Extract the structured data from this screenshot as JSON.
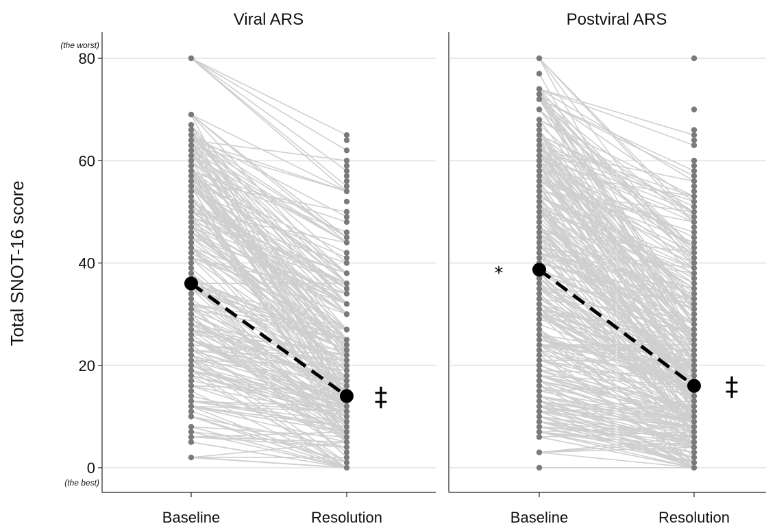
{
  "chart_data": {
    "type": "line",
    "ylabel": "Total SNOT-16 score",
    "ylim": [
      0,
      80
    ],
    "yticks": [
      0,
      20,
      40,
      60,
      80
    ],
    "y_annotations": {
      "top": "(the worst)",
      "bottom": "(the best)"
    },
    "categories": [
      "Baseline",
      "Resolution"
    ],
    "grid": "horizontal",
    "colors": {
      "individual_line": "#cfcfcf",
      "individual_point": "#7a7a7a",
      "mean": "#000000",
      "grid": "#e3e8ee"
    },
    "panels": [
      {
        "title": "Viral ARS",
        "mean": {
          "baseline": 36,
          "resolution": 14
        },
        "markers": {
          "baseline": "",
          "resolution": "‡"
        },
        "baseline_points": [
          2,
          5,
          6,
          7,
          8,
          10,
          11,
          12,
          13,
          14,
          15,
          16,
          17,
          18,
          19,
          20,
          21,
          22,
          23,
          24,
          25,
          26,
          27,
          28,
          29,
          30,
          31,
          32,
          33,
          34,
          35,
          36,
          37,
          38,
          39,
          40,
          41,
          42,
          43,
          44,
          45,
          46,
          47,
          48,
          49,
          50,
          51,
          52,
          53,
          54,
          55,
          56,
          57,
          58,
          59,
          60,
          61,
          62,
          63,
          64,
          65,
          66,
          67,
          69,
          80
        ],
        "resolution_points": [
          0,
          1,
          2,
          3,
          4,
          5,
          6,
          7,
          8,
          9,
          10,
          11,
          12,
          13,
          14,
          15,
          16,
          17,
          18,
          19,
          20,
          21,
          22,
          23,
          24,
          25,
          27,
          30,
          32,
          34,
          35,
          36,
          38,
          40,
          41,
          42,
          44,
          45,
          46,
          48,
          49,
          50,
          52,
          54,
          55,
          56,
          57,
          58,
          59,
          60,
          62,
          64,
          65
        ]
      },
      {
        "title": "Postviral ARS",
        "mean": {
          "baseline": 38.7,
          "resolution": 16
        },
        "markers": {
          "baseline": "*",
          "resolution": "‡"
        },
        "baseline_points": [
          0,
          3,
          6,
          7,
          8,
          9,
          10,
          11,
          12,
          13,
          14,
          15,
          16,
          17,
          18,
          19,
          20,
          21,
          22,
          23,
          24,
          25,
          26,
          27,
          28,
          29,
          30,
          31,
          32,
          33,
          34,
          35,
          36,
          37,
          38,
          39,
          40,
          41,
          42,
          43,
          44,
          45,
          46,
          47,
          48,
          49,
          50,
          51,
          52,
          53,
          54,
          55,
          56,
          57,
          58,
          59,
          60,
          61,
          62,
          63,
          64,
          65,
          66,
          67,
          68,
          70,
          72,
          73,
          74,
          77,
          80
        ],
        "resolution_points": [
          0,
          1,
          2,
          3,
          4,
          5,
          6,
          7,
          8,
          9,
          10,
          11,
          12,
          13,
          14,
          15,
          16,
          17,
          18,
          19,
          20,
          21,
          22,
          23,
          24,
          25,
          26,
          27,
          28,
          29,
          30,
          31,
          32,
          33,
          34,
          35,
          36,
          37,
          38,
          39,
          40,
          41,
          42,
          43,
          44,
          45,
          46,
          47,
          48,
          49,
          50,
          51,
          52,
          53,
          54,
          55,
          56,
          57,
          58,
          59,
          60,
          63,
          64,
          65,
          66,
          70,
          80
        ]
      }
    ]
  }
}
